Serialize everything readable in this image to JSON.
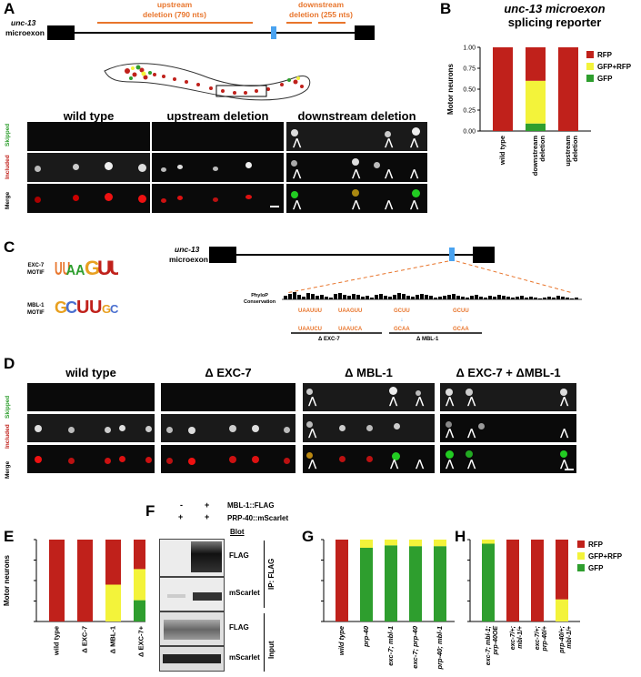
{
  "panel_labels": [
    "A",
    "B",
    "C",
    "D",
    "E",
    "F",
    "G",
    "H"
  ],
  "panelA": {
    "gene_label_1": "unc-13",
    "gene_label_2": "microexon",
    "upstream_label_1": "upstream",
    "upstream_label_2": "deletion (790 nts)",
    "downstream_label_1": "downstream",
    "downstream_label_2": "deletion (255 nts)",
    "columns": [
      "wild type",
      "upstream deletion",
      "downstream deletion"
    ],
    "rows": [
      "Skipped",
      "Included",
      "Merge"
    ]
  },
  "panelB": {
    "title_1": "unc-13 microexon",
    "title_2": "splicing reporter"
  },
  "panelC": {
    "motif1_1": "EXC-7",
    "motif1_2": "MOTIF",
    "motif2_1": "MBL-1",
    "motif2_2": "MOTIF",
    "gene_label_1": "unc-13",
    "gene_label_2": "microexon",
    "phylop_1": "PhyloP",
    "phylop_2": "Conservation",
    "mut1_top": "UAAUUU",
    "mut1_bot": "UAAUCU",
    "mut2_top": "UAAGUU",
    "mut2_bot": "UAAUCA",
    "mut3_top": "GCUU",
    "mut3_bot": "GCAA",
    "mut4_top": "GCUU",
    "mut4_bot": "GCAA",
    "bar1_label": "Δ EXC-7",
    "bar2_label": "Δ MBL-1"
  },
  "panelD": {
    "columns": [
      "wild type",
      "Δ EXC-7",
      "Δ MBL-1",
      "Δ EXC-7 + ΔMBL-1"
    ],
    "rows": [
      "Skipped",
      "Included",
      "Merge"
    ]
  },
  "panelF": {
    "row1_label": "MBL-1::FLAG",
    "row2_label": "PRP-40::mScarlet",
    "row1_signs": [
      "-",
      "+"
    ],
    "row2_signs": [
      "+",
      "+"
    ],
    "blot_label": "Blot",
    "blots": [
      "FLAG",
      "mScarlet",
      "FLAG",
      "mScarlet"
    ],
    "group1": "IP: FLAG",
    "group2": "Input"
  },
  "colors": {
    "RFP": "#c0211b",
    "GFP+RFP": "#f3f33a",
    "GFP": "#2e9e2e",
    "accent": "#e8752c",
    "microexon": "#4aa3f0"
  },
  "chart_data": [
    {
      "panel": "B",
      "type": "bar",
      "stacked": true,
      "ylabel": "Motor neurons",
      "ylim": [
        0,
        1.0
      ],
      "yticks": [
        "0.00",
        "0.25",
        "0.50",
        "0.75",
        "1.00"
      ],
      "categories": [
        "wild type",
        "downstream deletion",
        "upstream deletion"
      ],
      "series": [
        {
          "name": "GFP",
          "color": "#2e9e2e",
          "values": [
            0,
            0.09,
            0
          ]
        },
        {
          "name": "GFP+RFP",
          "color": "#f3f33a",
          "values": [
            0,
            0.51,
            0
          ]
        },
        {
          "name": "RFP",
          "color": "#c0211b",
          "values": [
            1.0,
            0.4,
            1.0
          ]
        }
      ],
      "legend": "right"
    },
    {
      "panel": "E",
      "type": "bar",
      "stacked": true,
      "ylabel": "Motor neurons",
      "categories": [
        "wild type",
        "Δ EXC-7",
        "Δ MBL-1",
        "Δ EXC-7+ MBL-1"
      ],
      "series": [
        {
          "name": "GFP",
          "color": "#2e9e2e",
          "values": [
            0,
            0,
            0,
            0.26
          ]
        },
        {
          "name": "GFP+RFP",
          "color": "#f3f33a",
          "values": [
            0,
            0,
            0.45,
            0.38
          ]
        },
        {
          "name": "RFP",
          "color": "#c0211b",
          "values": [
            1.0,
            1.0,
            0.55,
            0.36
          ]
        }
      ]
    },
    {
      "panel": "G",
      "type": "bar",
      "stacked": true,
      "categories": [
        "wild type",
        "prp-40",
        "exc-7; mbl-1",
        "exc-7; prp-40",
        "prp-40; mbl-1"
      ],
      "series": [
        {
          "name": "GFP",
          "color": "#2e9e2e",
          "values": [
            0,
            0.9,
            0.93,
            0.92,
            0.92
          ]
        },
        {
          "name": "GFP+RFP",
          "color": "#f3f33a",
          "values": [
            0,
            0.1,
            0.07,
            0.08,
            0.08
          ]
        },
        {
          "name": "RFP",
          "color": "#c0211b",
          "values": [
            1.0,
            0,
            0,
            0,
            0
          ]
        }
      ]
    },
    {
      "panel": "H",
      "type": "bar",
      "stacked": true,
      "categories": [
        "exc-7; mbl-1; prp-40OE",
        "exc-7/+; mbl-1/+",
        "exc-7/+; prp-40/+",
        "prp-40/+; mbl-1/+"
      ],
      "series": [
        {
          "name": "GFP",
          "color": "#2e9e2e",
          "values": [
            0.95,
            0,
            0,
            0
          ]
        },
        {
          "name": "GFP+RFP",
          "color": "#f3f33a",
          "values": [
            0.05,
            0,
            0,
            0.27
          ]
        },
        {
          "name": "RFP",
          "color": "#c0211b",
          "values": [
            0,
            1.0,
            1.0,
            0.73
          ]
        }
      ],
      "legend": "right"
    }
  ]
}
